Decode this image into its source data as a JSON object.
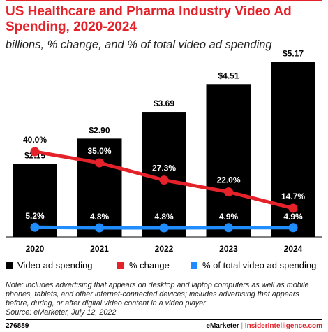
{
  "header": {
    "title": "US Healthcare and Pharma Industry Video Ad Spending, 2020-2024",
    "subtitle": "billions, % change, and % of total video ad spending"
  },
  "colors": {
    "bars": "#000000",
    "pct_change": "#e5222a",
    "pct_total": "#1f8dff",
    "accent": "#e5222a"
  },
  "chart_data": {
    "type": "bar",
    "categories": [
      "2020",
      "2021",
      "2022",
      "2023",
      "2024"
    ],
    "series": [
      {
        "name": "Video ad spending",
        "type": "bar",
        "values": [
          2.15,
          2.9,
          3.69,
          4.51,
          5.17
        ],
        "labels": [
          "$2.15",
          "$2.90",
          "$3.69",
          "$4.51",
          "$5.17"
        ]
      },
      {
        "name": "% change",
        "type": "line",
        "values": [
          40.0,
          35.0,
          27.3,
          22.0,
          14.7
        ],
        "labels": [
          "40.0%",
          "35.0%",
          "27.3%",
          "22.0%",
          "14.7%"
        ]
      },
      {
        "name": "% of total video ad spending",
        "type": "line",
        "values": [
          5.2,
          4.8,
          4.8,
          4.9,
          4.9
        ],
        "labels": [
          "5.2%",
          "4.8%",
          "4.8%",
          "4.9%",
          "4.9%"
        ]
      }
    ],
    "legend_position": "bottom",
    "grid": false
  },
  "legend": [
    {
      "label": "Video ad spending",
      "color": "#000000"
    },
    {
      "label": "% change",
      "color": "#e5222a"
    },
    {
      "label": "% of total video ad spending",
      "color": "#1f8dff"
    }
  ],
  "note": "Note: includes advertising that appears on desktop and laptop computers as well as mobile phones, tablets, and other internet-connected devices; includes advertising that appears before, during, or after digital video content in a video player",
  "source": "Source: eMarketer, July 12, 2022",
  "footer": {
    "chart_id": "276889",
    "brand": "eMarketer",
    "separator": "|",
    "brand2": "InsiderIntelligence.com"
  }
}
